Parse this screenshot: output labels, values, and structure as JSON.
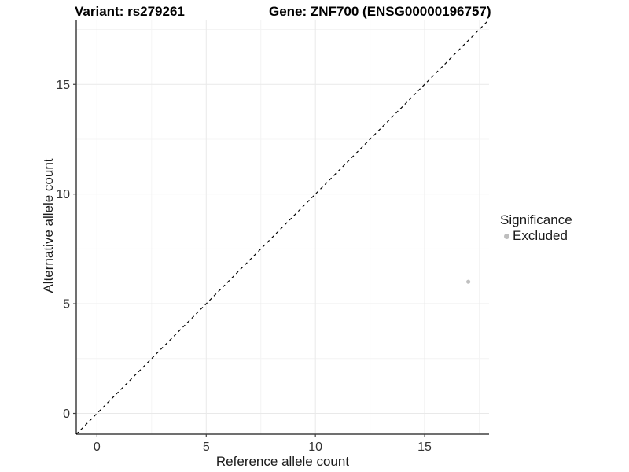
{
  "titles": {
    "variant": "Variant: rs279261",
    "gene": "Gene: ZNF700 (ENSG00000196757)"
  },
  "chart_data": {
    "type": "scatter",
    "title_left": "Variant: rs279261",
    "title_right": "Gene: ZNF700 (ENSG00000196757)",
    "xlabel": "Reference allele count",
    "ylabel": "Alternative allele count",
    "xlim": [
      -0.95,
      17.95
    ],
    "ylim": [
      -0.95,
      17.95
    ],
    "xticks": [
      0,
      5,
      10,
      15
    ],
    "yticks": [
      0,
      5,
      10,
      15
    ],
    "xminor": [
      2.5,
      7.5,
      12.5,
      17.5
    ],
    "yminor": [
      2.5,
      7.5,
      12.5,
      17.5
    ],
    "grid": true,
    "identity_line": {
      "style": "dashed",
      "from": [
        -0.95,
        -0.95
      ],
      "to": [
        17.95,
        17.95
      ]
    },
    "points": [
      {
        "x": 17,
        "y": 6,
        "series": "Excluded"
      }
    ],
    "legend": {
      "title": "Significance",
      "position": "right",
      "entries": [
        {
          "label": "Excluded",
          "color": "#bebebe"
        }
      ]
    },
    "colors": {
      "point": "#c0c0c0",
      "grid_major": "#e9e9e9",
      "grid_minor": "#f4f4f4",
      "axis": "#404040",
      "tick_label": "#333333",
      "dashed_line": "#000000"
    }
  }
}
